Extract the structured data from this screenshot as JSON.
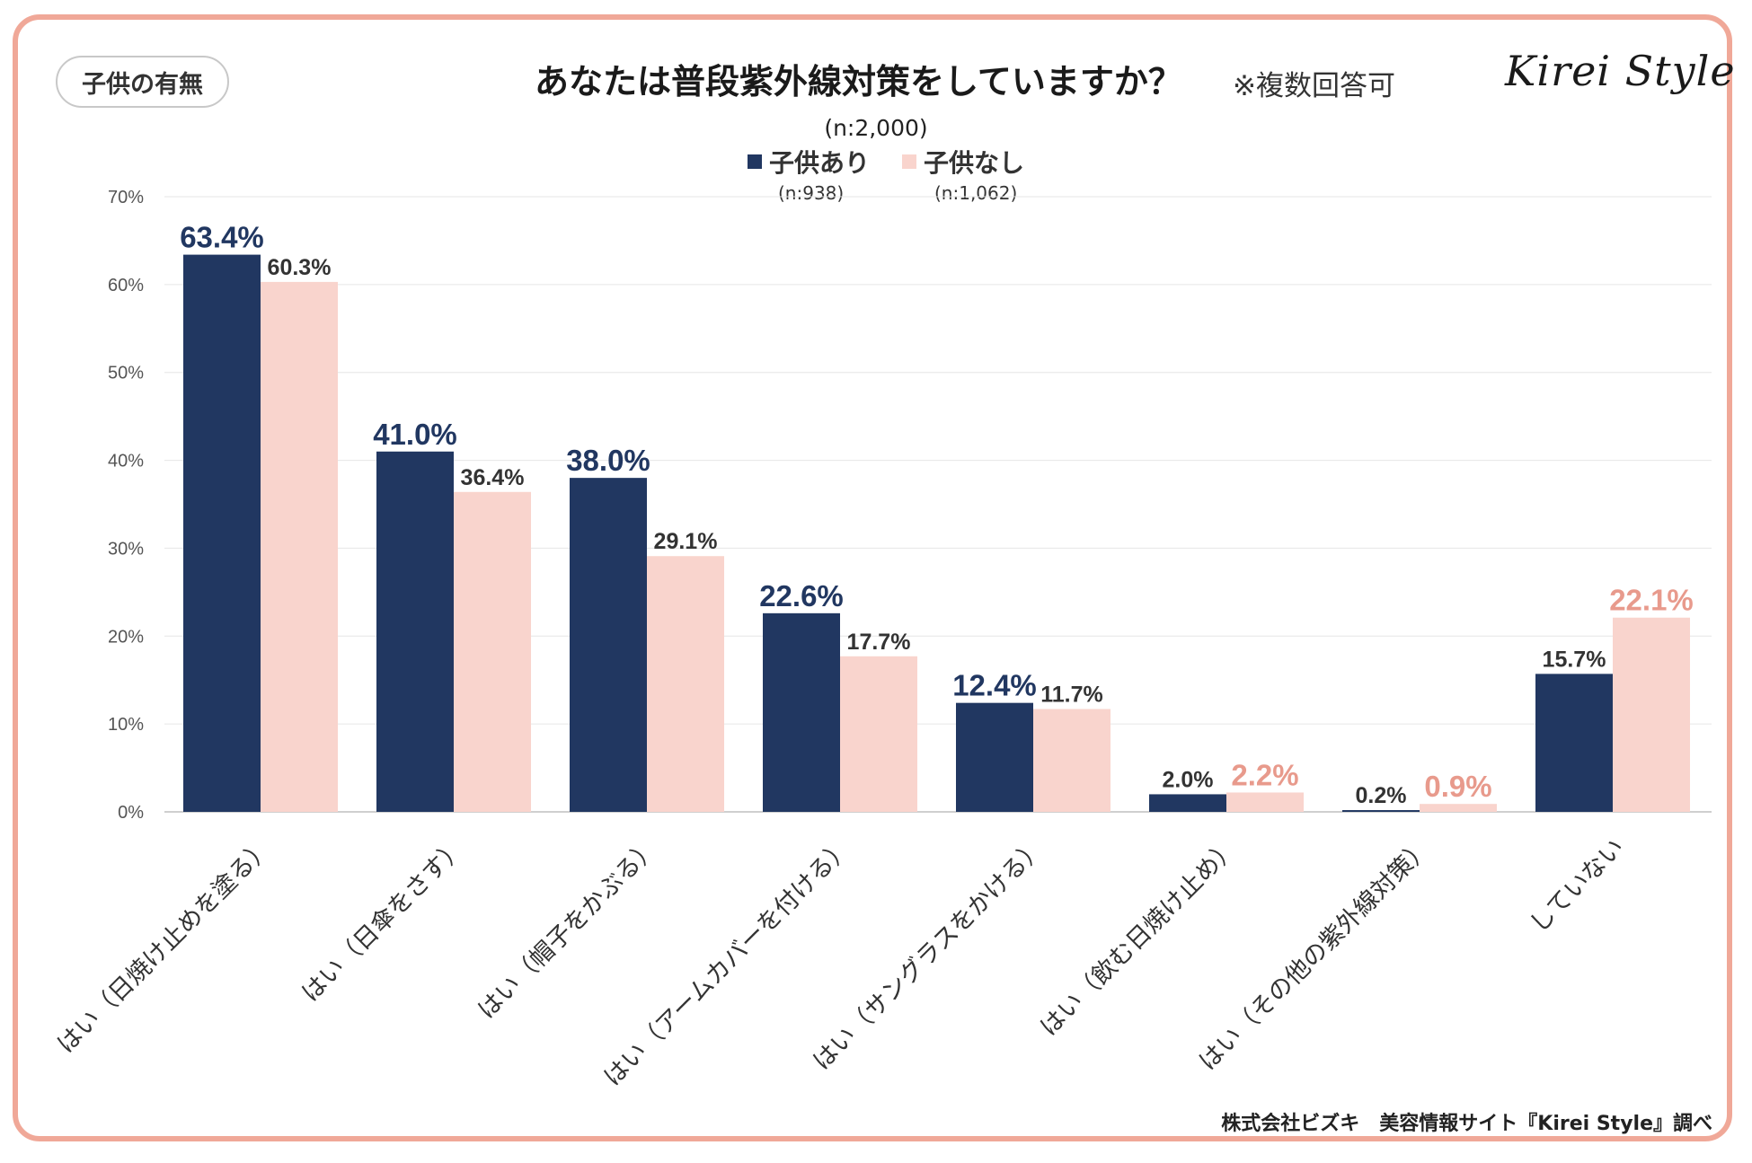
{
  "filter_chip": "子供の有無",
  "title": "あなたは普段紫外線対策をしていますか？",
  "note": "※複数回答可",
  "logo": "Kirei Style",
  "n_total": "(n:2,000)",
  "source": "株式会社ビズキ　美容情報サイト『Kirei Style』調べ",
  "colors": {
    "with_children": "#213761",
    "without_children": "#f9d4cd",
    "accent": "#e89a8c",
    "frame": "#f0a898"
  },
  "chart_data": {
    "type": "bar",
    "title": "あなたは普段紫外線対策をしていますか？",
    "xlabel": "",
    "ylabel": "",
    "ylim": [
      0,
      70
    ],
    "yticks": [
      "0%",
      "10%",
      "20%",
      "30%",
      "40%",
      "50%",
      "60%",
      "70%"
    ],
    "categories": [
      "はい（日焼け止めを塗る）",
      "はい（日傘をさす）",
      "はい（帽子をかぶる）",
      "はい（アームカバーを付ける）",
      "はい（サングラスをかける）",
      "はい（飲む日焼け止め）",
      "はい（その他の紫外線対策）",
      "していない"
    ],
    "series": [
      {
        "name": "子供あり",
        "n": "(n:938)",
        "values": [
          63.4,
          41.0,
          38.0,
          22.6,
          12.4,
          2.0,
          0.2,
          15.7
        ],
        "labels": [
          "63.4%",
          "41.0%",
          "38.0%",
          "22.6%",
          "12.4%",
          "2.0%",
          "0.2%",
          "15.7%"
        ]
      },
      {
        "name": "子供なし",
        "n": "(n:1,062)",
        "values": [
          60.3,
          36.4,
          29.1,
          17.7,
          11.7,
          2.2,
          0.9,
          22.1
        ],
        "labels": [
          "60.3%",
          "36.4%",
          "29.1%",
          "17.7%",
          "11.7%",
          "2.2%",
          "0.9%",
          "22.1%"
        ]
      }
    ],
    "highlight": [
      [
        true,
        true,
        true,
        true,
        true,
        false,
        false,
        false
      ],
      [
        false,
        false,
        false,
        false,
        false,
        true,
        true,
        true
      ]
    ],
    "legend": "top-center"
  }
}
